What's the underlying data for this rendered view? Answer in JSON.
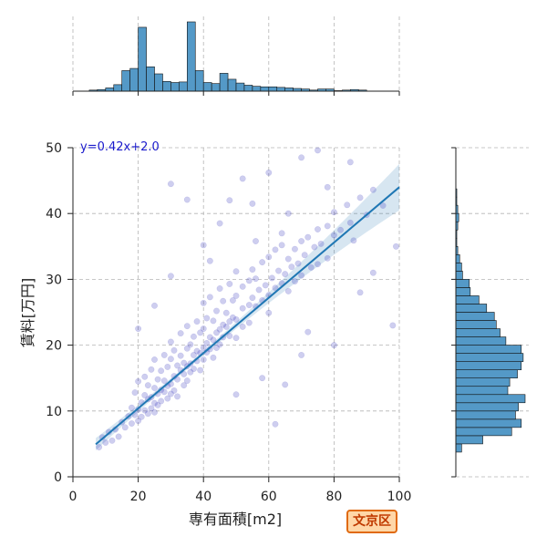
{
  "chart_data": {
    "type": "scatter",
    "title": "",
    "xlabel": "専有面積[m2]",
    "ylabel": "賃料[万円]",
    "xlim": [
      0,
      100
    ],
    "ylim": [
      0,
      50
    ],
    "x_ticks": [
      0,
      20,
      40,
      60,
      80,
      100
    ],
    "y_ticks": [
      0,
      10,
      20,
      30,
      40,
      50
    ],
    "grid": true,
    "regression": {
      "equation_label": "y=0.42x+2.0",
      "slope": 0.42,
      "intercept": 2.0,
      "x_range": [
        7,
        100
      ]
    },
    "points": [
      [
        8,
        4.5
      ],
      [
        9,
        6
      ],
      [
        10,
        5.2
      ],
      [
        11,
        6.8
      ],
      [
        12,
        5.5
      ],
      [
        13,
        7.2
      ],
      [
        14,
        6.1
      ],
      [
        15,
        8.3
      ],
      [
        16,
        7.5
      ],
      [
        17,
        9.2
      ],
      [
        18,
        8.1
      ],
      [
        18,
        10.5
      ],
      [
        19,
        9.4
      ],
      [
        19,
        12.8
      ],
      [
        20,
        10.2
      ],
      [
        20,
        8.5
      ],
      [
        20,
        14.5
      ],
      [
        21,
        11.3
      ],
      [
        21,
        9.1
      ],
      [
        22,
        12.4
      ],
      [
        22,
        10.1
      ],
      [
        22,
        15.2
      ],
      [
        23,
        11.8
      ],
      [
        23,
        9.6
      ],
      [
        23,
        13.9
      ],
      [
        24,
        12.1
      ],
      [
        24,
        10.4
      ],
      [
        24,
        16.3
      ],
      [
        25,
        11.2
      ],
      [
        25,
        13.5
      ],
      [
        25,
        9.8
      ],
      [
        25,
        17.8
      ],
      [
        26,
        12.6
      ],
      [
        26,
        14.8
      ],
      [
        26,
        10.9
      ],
      [
        27,
        13.2
      ],
      [
        27,
        11.5
      ],
      [
        27,
        16.1
      ],
      [
        28,
        12.9
      ],
      [
        28,
        14.6
      ],
      [
        28,
        18.5
      ],
      [
        29,
        13.8
      ],
      [
        29,
        11.9
      ],
      [
        29,
        16.7
      ],
      [
        30,
        14.1
      ],
      [
        30,
        12.6
      ],
      [
        30,
        17.9
      ],
      [
        30,
        20.5
      ],
      [
        31,
        15.3
      ],
      [
        31,
        13.1
      ],
      [
        31,
        19.2
      ],
      [
        32,
        14.8
      ],
      [
        32,
        16.9
      ],
      [
        32,
        12.2
      ],
      [
        33,
        16.2
      ],
      [
        33,
        18.4
      ],
      [
        33,
        21.8
      ],
      [
        34,
        15.6
      ],
      [
        34,
        17.3
      ],
      [
        34,
        13.9
      ],
      [
        35,
        16.8
      ],
      [
        35,
        19.5
      ],
      [
        35,
        22.9
      ],
      [
        35,
        14.6
      ],
      [
        36,
        17.2
      ],
      [
        36,
        20.1
      ],
      [
        36,
        15.9
      ],
      [
        37,
        18.5
      ],
      [
        37,
        21.3
      ],
      [
        37,
        16.4
      ],
      [
        38,
        19.1
      ],
      [
        38,
        17.6
      ],
      [
        38,
        23.6
      ],
      [
        39,
        18.8
      ],
      [
        39,
        21.9
      ],
      [
        39,
        16.2
      ],
      [
        40,
        19.6
      ],
      [
        40,
        22.5
      ],
      [
        40,
        17.8
      ],
      [
        40,
        26.4
      ],
      [
        41,
        20.3
      ],
      [
        41,
        18.9
      ],
      [
        41,
        24.1
      ],
      [
        42,
        21.2
      ],
      [
        42,
        19.4
      ],
      [
        42,
        27.3
      ],
      [
        43,
        20.8
      ],
      [
        43,
        23.7
      ],
      [
        43,
        18.1
      ],
      [
        44,
        21.9
      ],
      [
        44,
        25.2
      ],
      [
        44,
        19.6
      ],
      [
        45,
        22.4
      ],
      [
        45,
        20.1
      ],
      [
        45,
        28.6
      ],
      [
        46,
        23.1
      ],
      [
        46,
        21.2
      ],
      [
        46,
        26.7
      ],
      [
        47,
        22.8
      ],
      [
        47,
        24.9
      ],
      [
        48,
        23.6
      ],
      [
        48,
        21.4
      ],
      [
        48,
        29.3
      ],
      [
        49,
        24.2
      ],
      [
        49,
        26.8
      ],
      [
        50,
        23.9
      ],
      [
        50,
        27.5
      ],
      [
        50,
        21.1
      ],
      [
        50,
        31.2
      ],
      [
        52,
        25.6
      ],
      [
        52,
        28.9
      ],
      [
        52,
        22.8
      ],
      [
        54,
        26.1
      ],
      [
        54,
        29.8
      ],
      [
        54,
        23.4
      ],
      [
        55,
        27.2
      ],
      [
        55,
        31.5
      ],
      [
        56,
        25.9
      ],
      [
        56,
        30.1
      ],
      [
        57,
        28.4
      ],
      [
        58,
        26.8
      ],
      [
        58,
        32.6
      ],
      [
        59,
        29.1
      ],
      [
        60,
        27.6
      ],
      [
        60,
        33.4
      ],
      [
        60,
        24.9
      ],
      [
        61,
        30.2
      ],
      [
        62,
        28.7
      ],
      [
        62,
        34.5
      ],
      [
        63,
        31.3
      ],
      [
        64,
        29.4
      ],
      [
        64,
        35.2
      ],
      [
        65,
        30.8
      ],
      [
        66,
        33.1
      ],
      [
        66,
        28.2
      ],
      [
        67,
        31.9
      ],
      [
        68,
        34.6
      ],
      [
        68,
        29.7
      ],
      [
        69,
        32.4
      ],
      [
        70,
        35.8
      ],
      [
        70,
        30.6
      ],
      [
        71,
        33.7
      ],
      [
        72,
        36.4
      ],
      [
        73,
        31.8
      ],
      [
        74,
        34.9
      ],
      [
        75,
        37.6
      ],
      [
        75,
        32.3
      ],
      [
        76,
        35.4
      ],
      [
        78,
        38.1
      ],
      [
        78,
        33.2
      ],
      [
        80,
        36.7
      ],
      [
        80,
        40.2
      ],
      [
        82,
        37.5
      ],
      [
        84,
        41.3
      ],
      [
        85,
        38.6
      ],
      [
        86,
        35.9
      ],
      [
        88,
        42.4
      ],
      [
        90,
        39.8
      ],
      [
        92,
        43.6
      ],
      [
        95,
        41.2
      ],
      [
        30,
        44.5
      ],
      [
        35,
        42.1
      ],
      [
        60,
        46.2
      ],
      [
        70,
        48.5
      ],
      [
        75,
        49.6
      ],
      [
        85,
        47.8
      ],
      [
        99,
        35
      ],
      [
        62,
        8
      ],
      [
        80,
        20
      ],
      [
        98,
        23
      ],
      [
        45,
        38.5
      ],
      [
        48,
        42
      ],
      [
        52,
        45.3
      ],
      [
        55,
        41.5
      ],
      [
        40,
        35.2
      ],
      [
        30,
        30.5
      ],
      [
        25,
        26
      ],
      [
        20,
        22.5
      ],
      [
        65,
        14
      ],
      [
        70,
        18.5
      ],
      [
        72,
        22
      ],
      [
        58,
        15
      ],
      [
        50,
        12.5
      ],
      [
        66,
        40
      ],
      [
        88,
        28
      ],
      [
        92,
        31
      ],
      [
        78,
        44
      ],
      [
        64,
        37
      ],
      [
        56,
        35.8
      ],
      [
        42,
        32.8
      ]
    ],
    "marginal_x_hist": {
      "bin_width": 2.5,
      "x_start": 5,
      "counts": [
        2,
        3,
        6,
        12,
        38,
        42,
        118,
        45,
        32,
        18,
        16,
        17,
        128,
        38,
        16,
        14,
        33,
        22,
        15,
        11,
        9,
        8,
        8,
        7,
        6,
        5,
        4,
        2,
        4,
        4,
        1,
        2,
        3,
        2
      ]
    },
    "marginal_y_hist": {
      "bin_width": 1.25,
      "y_start": 3.75,
      "counts": [
        6,
        28,
        58,
        68,
        62,
        65,
        72,
        54,
        56,
        64,
        68,
        70,
        68,
        52,
        46,
        42,
        40,
        32,
        24,
        15,
        14,
        7,
        6,
        4,
        2,
        1,
        1,
        2,
        3,
        2,
        1,
        1
      ]
    }
  },
  "badge": {
    "label": "文京区",
    "bg": "#ffd7a8",
    "border": "#e06a10"
  }
}
